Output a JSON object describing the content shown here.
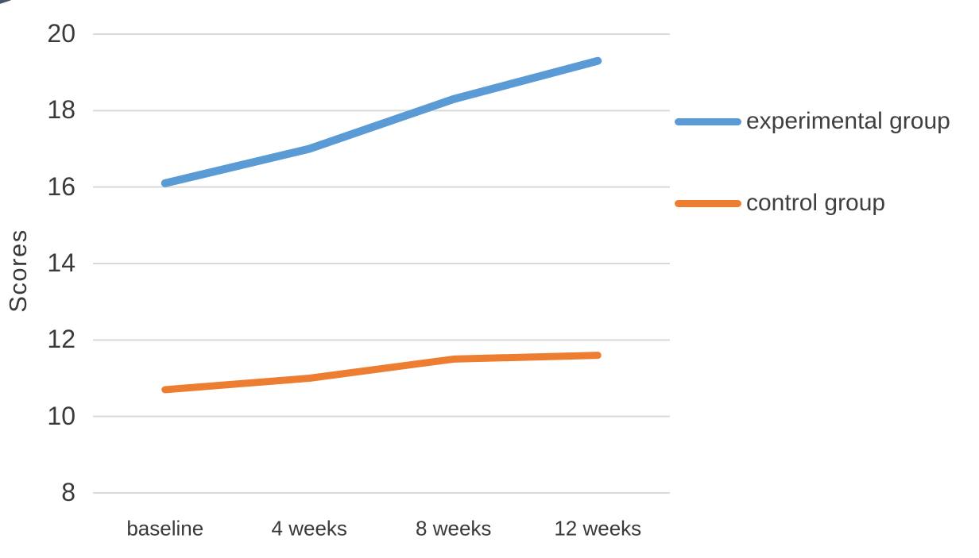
{
  "chart_data": {
    "type": "line",
    "title": "",
    "xlabel": "",
    "ylabel": "Scores",
    "categories": [
      "baseline",
      "4 weeks",
      "8 weeks",
      "12 weeks"
    ],
    "series": [
      {
        "name": "experimental group",
        "color": "#5B9BD5",
        "values": [
          16.1,
          17.0,
          18.3,
          19.3
        ]
      },
      {
        "name": "control group",
        "color": "#ED7D31",
        "values": [
          10.7,
          11.0,
          11.5,
          11.6
        ]
      }
    ],
    "y_ticks": [
      20,
      18,
      16,
      14,
      12,
      10,
      8
    ],
    "ylim": [
      8,
      20
    ],
    "grid": "horizontal",
    "grid_color": "#D9D9D9",
    "text_color": "#3F3F3F",
    "legend_position": "right"
  }
}
